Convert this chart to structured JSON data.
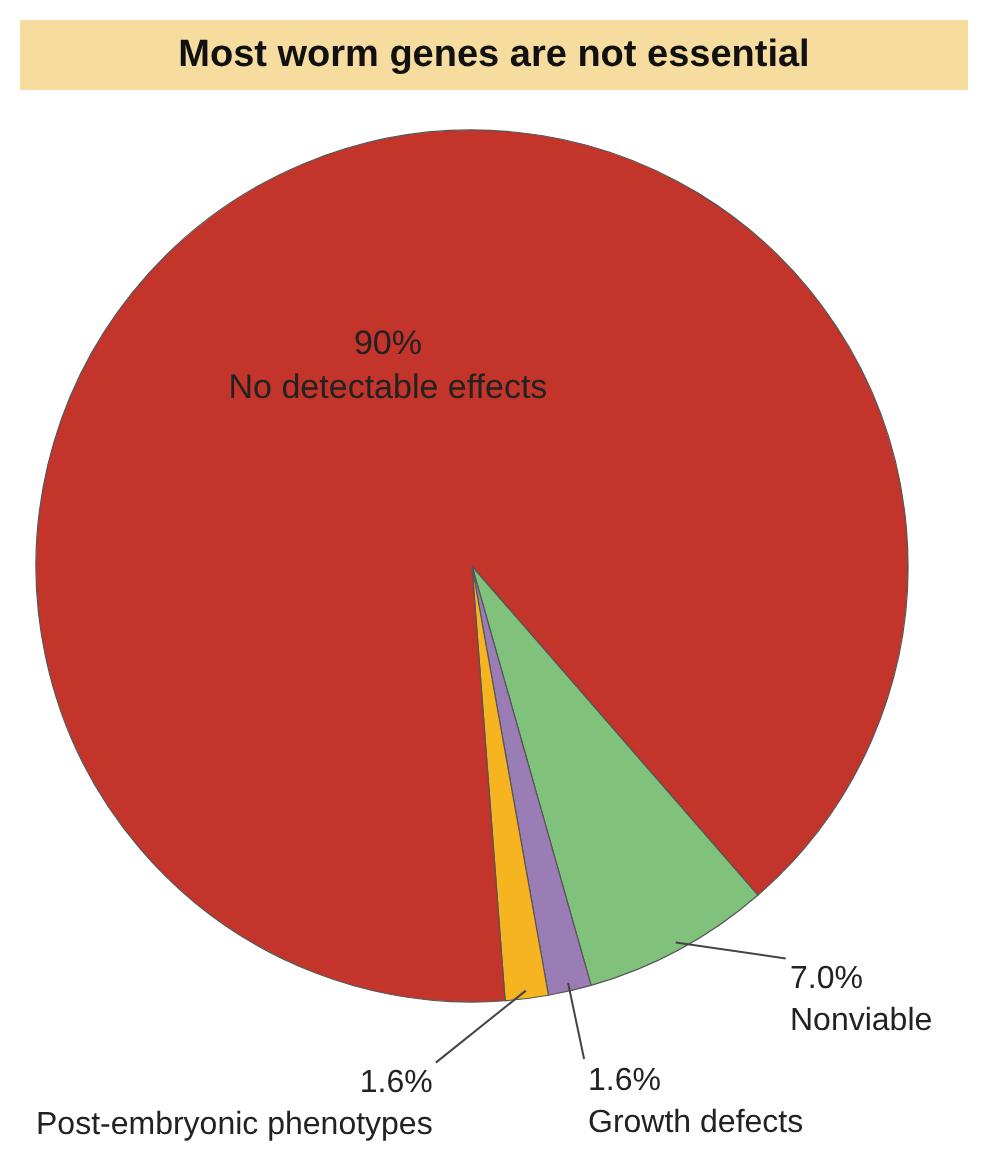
{
  "chart_data": {
    "type": "pie",
    "title": "Most worm genes are not essential",
    "categories": [
      "Nonviable",
      "Growth defects",
      "Post-embryonic phenotypes",
      "No detectable effects"
    ],
    "values": [
      7.0,
      1.6,
      1.6,
      90
    ],
    "value_labels": [
      "7.0%",
      "1.6%",
      "1.6%",
      "90%"
    ],
    "colors": [
      "#80c27c",
      "#9b7db6",
      "#f7b421",
      "#c3342a"
    ],
    "legend": false
  }
}
